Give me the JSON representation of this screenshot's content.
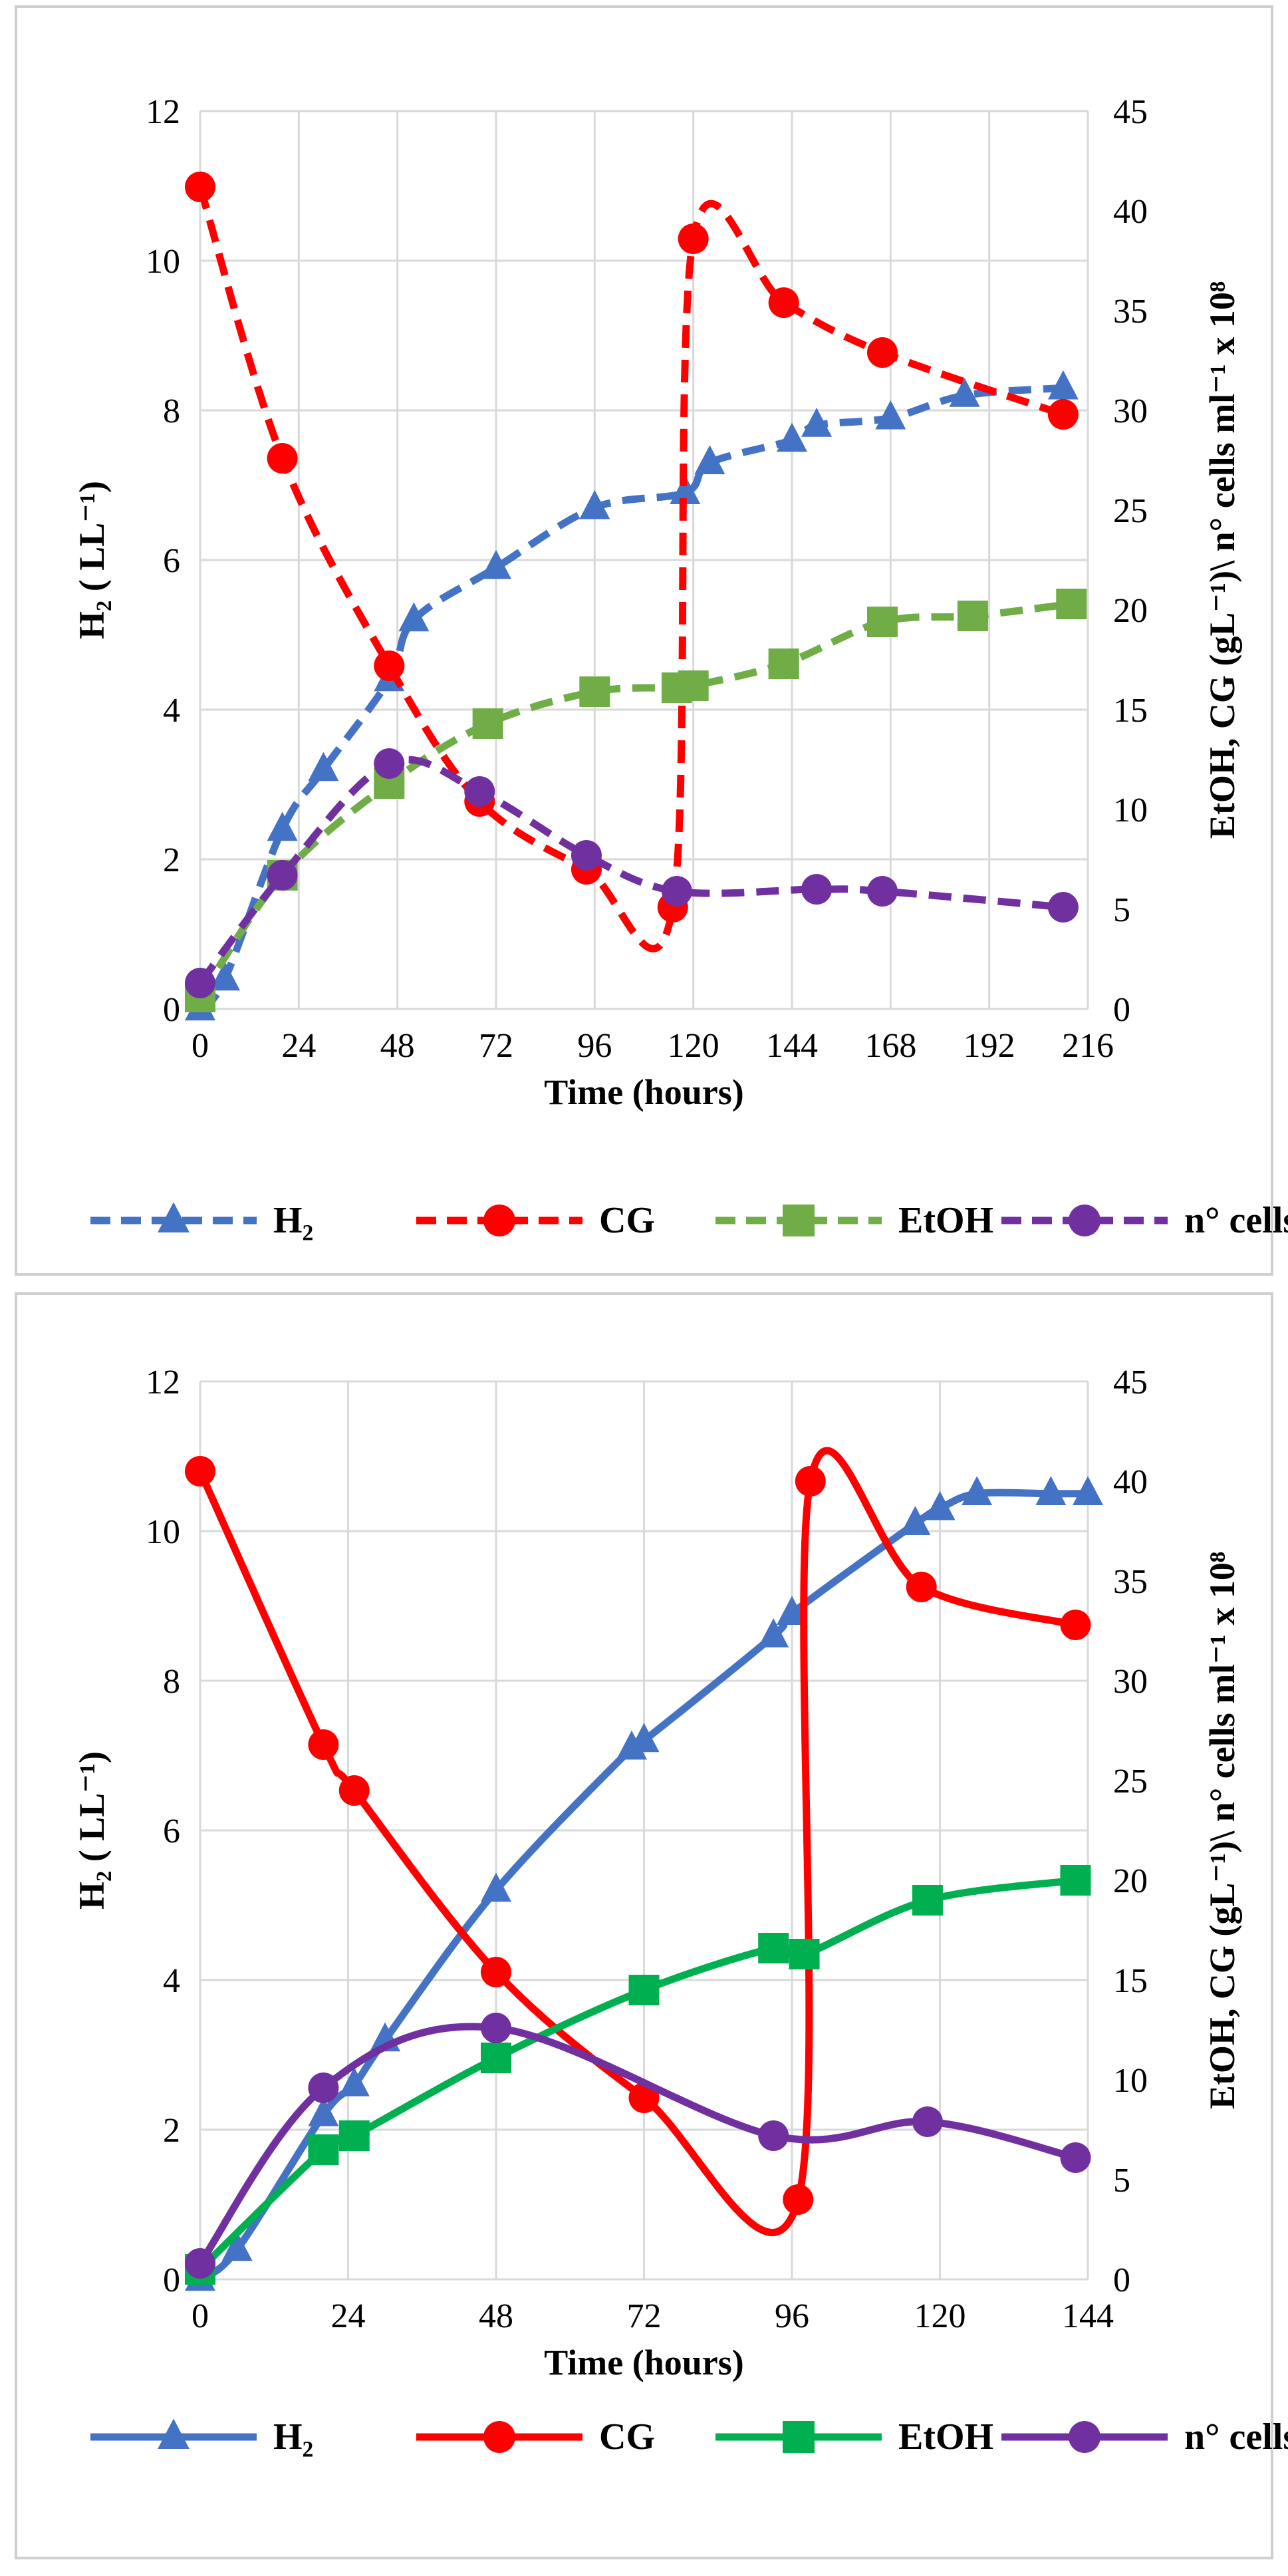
{
  "chart_data": [
    {
      "type": "line",
      "line_style": "dashed",
      "xlabel": "Time (hours)",
      "ylabel": "H₂ ( LL⁻¹)",
      "y2label": "EtOH, CG  (gL⁻¹)\\ n° cells ml⁻¹ x 10⁸",
      "xlim": [
        0,
        216
      ],
      "ylim": [
        0,
        12
      ],
      "y2lim": [
        0,
        45
      ],
      "xticks": [
        0,
        24,
        48,
        72,
        96,
        120,
        144,
        168,
        192,
        216
      ],
      "yticks": [
        0,
        2,
        4,
        6,
        8,
        10,
        12
      ],
      "y2ticks": [
        0,
        5,
        10,
        15,
        20,
        25,
        30,
        35,
        40,
        45
      ],
      "grid": true,
      "legend": "bottom",
      "series": [
        {
          "name": "H₂",
          "axis": "left",
          "marker": "triangle",
          "color": "#4472C4",
          "x": [
            0,
            6,
            20,
            30,
            46,
            52,
            72,
            96,
            118,
            124,
            144,
            150,
            168,
            186,
            210
          ],
          "y": [
            0,
            0.4,
            2.4,
            3.2,
            4.4,
            5.2,
            5.9,
            6.7,
            6.9,
            7.3,
            7.6,
            7.8,
            7.9,
            8.2,
            8.3
          ]
        },
        {
          "name": "CG",
          "axis": "right",
          "marker": "circle",
          "color": "#FF0000",
          "x": [
            0,
            20,
            46,
            68,
            94,
            115,
            120,
            142,
            166,
            210
          ],
          "y": [
            41.2,
            27.6,
            17.2,
            10.4,
            7.0,
            5.1,
            38.6,
            35.4,
            32.9,
            29.8
          ]
        },
        {
          "name": "EtOH",
          "axis": "right",
          "marker": "square",
          "color": "#70AD47",
          "x": [
            0,
            20,
            46,
            70,
            96,
            116,
            120,
            142,
            166,
            188,
            212
          ],
          "y": [
            0.6,
            6.7,
            11.3,
            14.3,
            15.9,
            16.1,
            16.2,
            17.3,
            19.4,
            19.7,
            20.3
          ]
        },
        {
          "name": "n° cells",
          "axis": "right",
          "marker": "circle",
          "color": "#7030A0",
          "x": [
            0,
            20,
            46,
            68,
            94,
            116,
            150,
            166,
            210
          ],
          "y": [
            1.3,
            6.7,
            12.3,
            10.9,
            7.7,
            5.9,
            6.0,
            5.9,
            5.1
          ]
        }
      ]
    },
    {
      "type": "line",
      "line_style": "solid",
      "xlabel": "Time (hours)",
      "ylabel": "H₂ ( LL⁻¹)",
      "y2label": "EtOH, CG  (gL⁻¹)\\ n° cells ml⁻¹ x 10⁸",
      "xlim": [
        0,
        144
      ],
      "ylim": [
        0,
        12
      ],
      "y2lim": [
        0,
        45
      ],
      "xticks": [
        0,
        24,
        48,
        72,
        96,
        120,
        144
      ],
      "yticks": [
        0,
        2,
        4,
        6,
        8,
        10,
        12
      ],
      "y2ticks": [
        0,
        5,
        10,
        15,
        20,
        25,
        30,
        35,
        40,
        45
      ],
      "grid": true,
      "legend": "bottom",
      "series": [
        {
          "name": "H₂",
          "axis": "left",
          "marker": "triangle",
          "color": "#4472C4",
          "x": [
            0,
            6,
            20,
            25,
            30,
            48,
            70,
            72,
            93,
            96,
            116,
            120,
            126,
            138,
            144
          ],
          "y": [
            0,
            0.4,
            2.2,
            2.6,
            3.2,
            5.2,
            7.1,
            7.2,
            8.6,
            8.9,
            10.1,
            10.3,
            10.5,
            10.5,
            10.5
          ]
        },
        {
          "name": "CG",
          "axis": "right",
          "marker": "circle",
          "color": "#FF0000",
          "x": [
            0,
            20,
            25,
            48,
            72,
            97,
            99,
            117,
            142
          ],
          "y": [
            40.5,
            26.8,
            24.5,
            15.4,
            9.1,
            4.0,
            40.0,
            34.7,
            32.8
          ]
        },
        {
          "name": "EtOH",
          "axis": "right",
          "marker": "square",
          "color": "#00B050",
          "x": [
            0,
            20,
            25,
            48,
            72,
            93,
            98,
            118,
            142
          ],
          "y": [
            0.5,
            6.5,
            7.2,
            11.1,
            14.5,
            16.6,
            16.3,
            19.0,
            20.0
          ]
        },
        {
          "name": "n° cells",
          "axis": "right",
          "marker": "circle",
          "color": "#7030A0",
          "x": [
            0,
            20,
            48,
            93,
            118,
            142
          ],
          "y": [
            0.8,
            9.6,
            12.6,
            7.2,
            7.9,
            6.1
          ]
        }
      ]
    }
  ]
}
